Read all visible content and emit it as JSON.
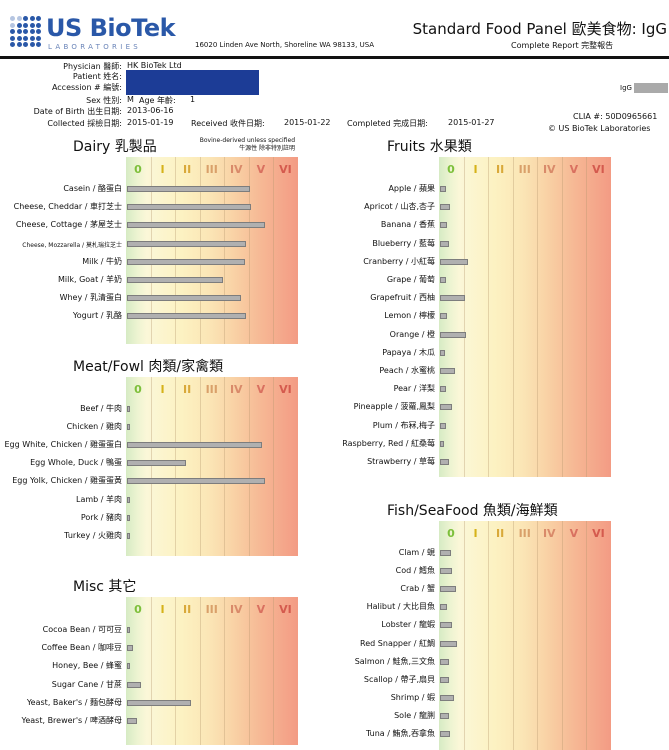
{
  "header": {
    "logo_name": "US BioTek",
    "logo_sub": "LABORATORIES",
    "address": "16020 Linden Ave North, Shoreline WA 98133, USA",
    "title": "Standard Food Panel 歐美食物: IgG",
    "subtitle": "Complete Report 完整報告"
  },
  "patient": {
    "physician_label": "Physician 醫師:",
    "physician": "HK BioTek Ltd",
    "patient_label": "Patient 姓名:",
    "accession_label": "Accession # 編號:",
    "sex_label": "Sex 性別:",
    "sex": "M",
    "age_label": "Age 年齡:",
    "age": "1",
    "dob_label": "Date of Birth 出生日期:",
    "dob": "2013-06-16",
    "collected_label": "Collected 採檢日期:",
    "collected": "2015-01-19",
    "received_label": "Received 收件日期:",
    "received": "2015-01-22",
    "completed_label": "Completed 完成日期:",
    "completed": "2015-01-27",
    "igg_label": "IgG",
    "clia": "CLIA #: 50D0965661",
    "copyright": "© US BioTek Laboratories"
  },
  "levels": [
    "0",
    "I",
    "II",
    "III",
    "IV",
    "V",
    "VI"
  ],
  "level_colors": [
    "#7cbf3a",
    "#d6b21a",
    "#d9a93a",
    "#d9a06a",
    "#d98a6a",
    "#d97060",
    "#d45a4e"
  ],
  "panels": [
    {
      "id": "dairy",
      "title": "Dairy 乳製品",
      "note_line1": "Bovine-derived unless specified",
      "note_line2": "牛源性 除非特別註明",
      "items": [
        {
          "label": "Casein / 酪蛋白",
          "level": 5.0
        },
        {
          "label": "Cheese, Cheddar / 車打芝士",
          "level": 5.05
        },
        {
          "label": "Cheese, Cottage / 茅屋芝士",
          "level": 5.6
        },
        {
          "label": "Cheese, Mozzarella / 莫札瑞拉芝士",
          "level": 4.85
        },
        {
          "label": "Milk / 牛奶",
          "level": 4.8
        },
        {
          "label": "Milk, Goat / 羊奶",
          "level": 3.9
        },
        {
          "label": "Whey / 乳清蛋白",
          "level": 4.65
        },
        {
          "label": "Yogurt / 乳酪",
          "level": 4.85
        }
      ]
    },
    {
      "id": "meat",
      "title": "Meat/Fowl 肉類/家禽類",
      "items": [
        {
          "label": "Beef / 牛肉",
          "level": 0.12
        },
        {
          "label": "Chicken / 雞肉",
          "level": 0.05
        },
        {
          "label": "Egg White, Chicken / 雞蛋蛋白",
          "level": 5.5
        },
        {
          "label": "Egg Whole, Duck / 鴨蛋",
          "level": 2.4
        },
        {
          "label": "Egg Yolk, Chicken / 雞蛋蛋黃",
          "level": 5.6
        },
        {
          "label": "Lamb / 羊肉",
          "level": 0.05
        },
        {
          "label": "Pork / 豬肉",
          "level": 0.05
        },
        {
          "label": "Turkey / 火雞肉",
          "level": 0.05
        }
      ]
    },
    {
      "id": "misc",
      "title": "Misc 其它",
      "items": [
        {
          "label": "Cocoa Bean / 可可豆",
          "level": 0.12
        },
        {
          "label": "Coffee Bean / 咖啡豆",
          "level": 0.25
        },
        {
          "label": "Honey, Bee / 蜂蜜",
          "level": 0.1
        },
        {
          "label": "Sugar Cane / 甘蔗",
          "level": 0.55
        },
        {
          "label": "Yeast, Baker's / 麵包酵母",
          "level": 2.6
        },
        {
          "label": "Yeast, Brewer's / 啤酒酵母",
          "level": 0.4
        }
      ]
    },
    {
      "id": "fruits",
      "title": "Fruits 水果類",
      "items": [
        {
          "label": "Apple / 蘋果",
          "level": 0.25
        },
        {
          "label": "Apricot / 山杏,杏子",
          "level": 0.4
        },
        {
          "label": "Banana / 香蕉",
          "level": 0.3
        },
        {
          "label": "Blueberry / 藍莓",
          "level": 0.35
        },
        {
          "label": "Cranberry / 小紅莓",
          "level": 1.15
        },
        {
          "label": "Grape / 葡萄",
          "level": 0.25
        },
        {
          "label": "Grapefruit / 西柚",
          "level": 1.0
        },
        {
          "label": "Lemon / 檸檬",
          "level": 0.3
        },
        {
          "label": "Orange / 橙",
          "level": 1.05
        },
        {
          "label": "Papaya / 木瓜",
          "level": 0.2
        },
        {
          "label": "Peach / 水蜜桃",
          "level": 0.6
        },
        {
          "label": "Pear / 洋梨",
          "level": 0.25
        },
        {
          "label": "Pineapple / 菠蘿,鳳梨",
          "level": 0.5
        },
        {
          "label": "Plum / 布冧,梅子",
          "level": 0.25
        },
        {
          "label": "Raspberry, Red / 紅桑莓",
          "level": 0.15
        },
        {
          "label": "Strawberry / 草莓",
          "level": 0.35
        }
      ]
    },
    {
      "id": "fish",
      "title": "Fish/SeaFood 魚類/海鮮類",
      "items": [
        {
          "label": "Clam / 蜆",
          "level": 0.45
        },
        {
          "label": "Cod / 鱈魚",
          "level": 0.5
        },
        {
          "label": "Crab / 蟹",
          "level": 0.65
        },
        {
          "label": "Halibut / 大比目魚",
          "level": 0.3
        },
        {
          "label": "Lobster / 龍蝦",
          "level": 0.5
        },
        {
          "label": "Red Snapper / 紅鯛",
          "level": 0.7
        },
        {
          "label": "Salmon / 鮭魚,三文魚",
          "level": 0.35
        },
        {
          "label": "Scallop / 帶子,扇貝",
          "level": 0.35
        },
        {
          "label": "Shrimp / 蝦",
          "level": 0.55
        },
        {
          "label": "Sole / 龍脷",
          "level": 0.35
        },
        {
          "label": "Tuna / 鮪魚,吞拿魚",
          "level": 0.4
        }
      ]
    }
  ]
}
